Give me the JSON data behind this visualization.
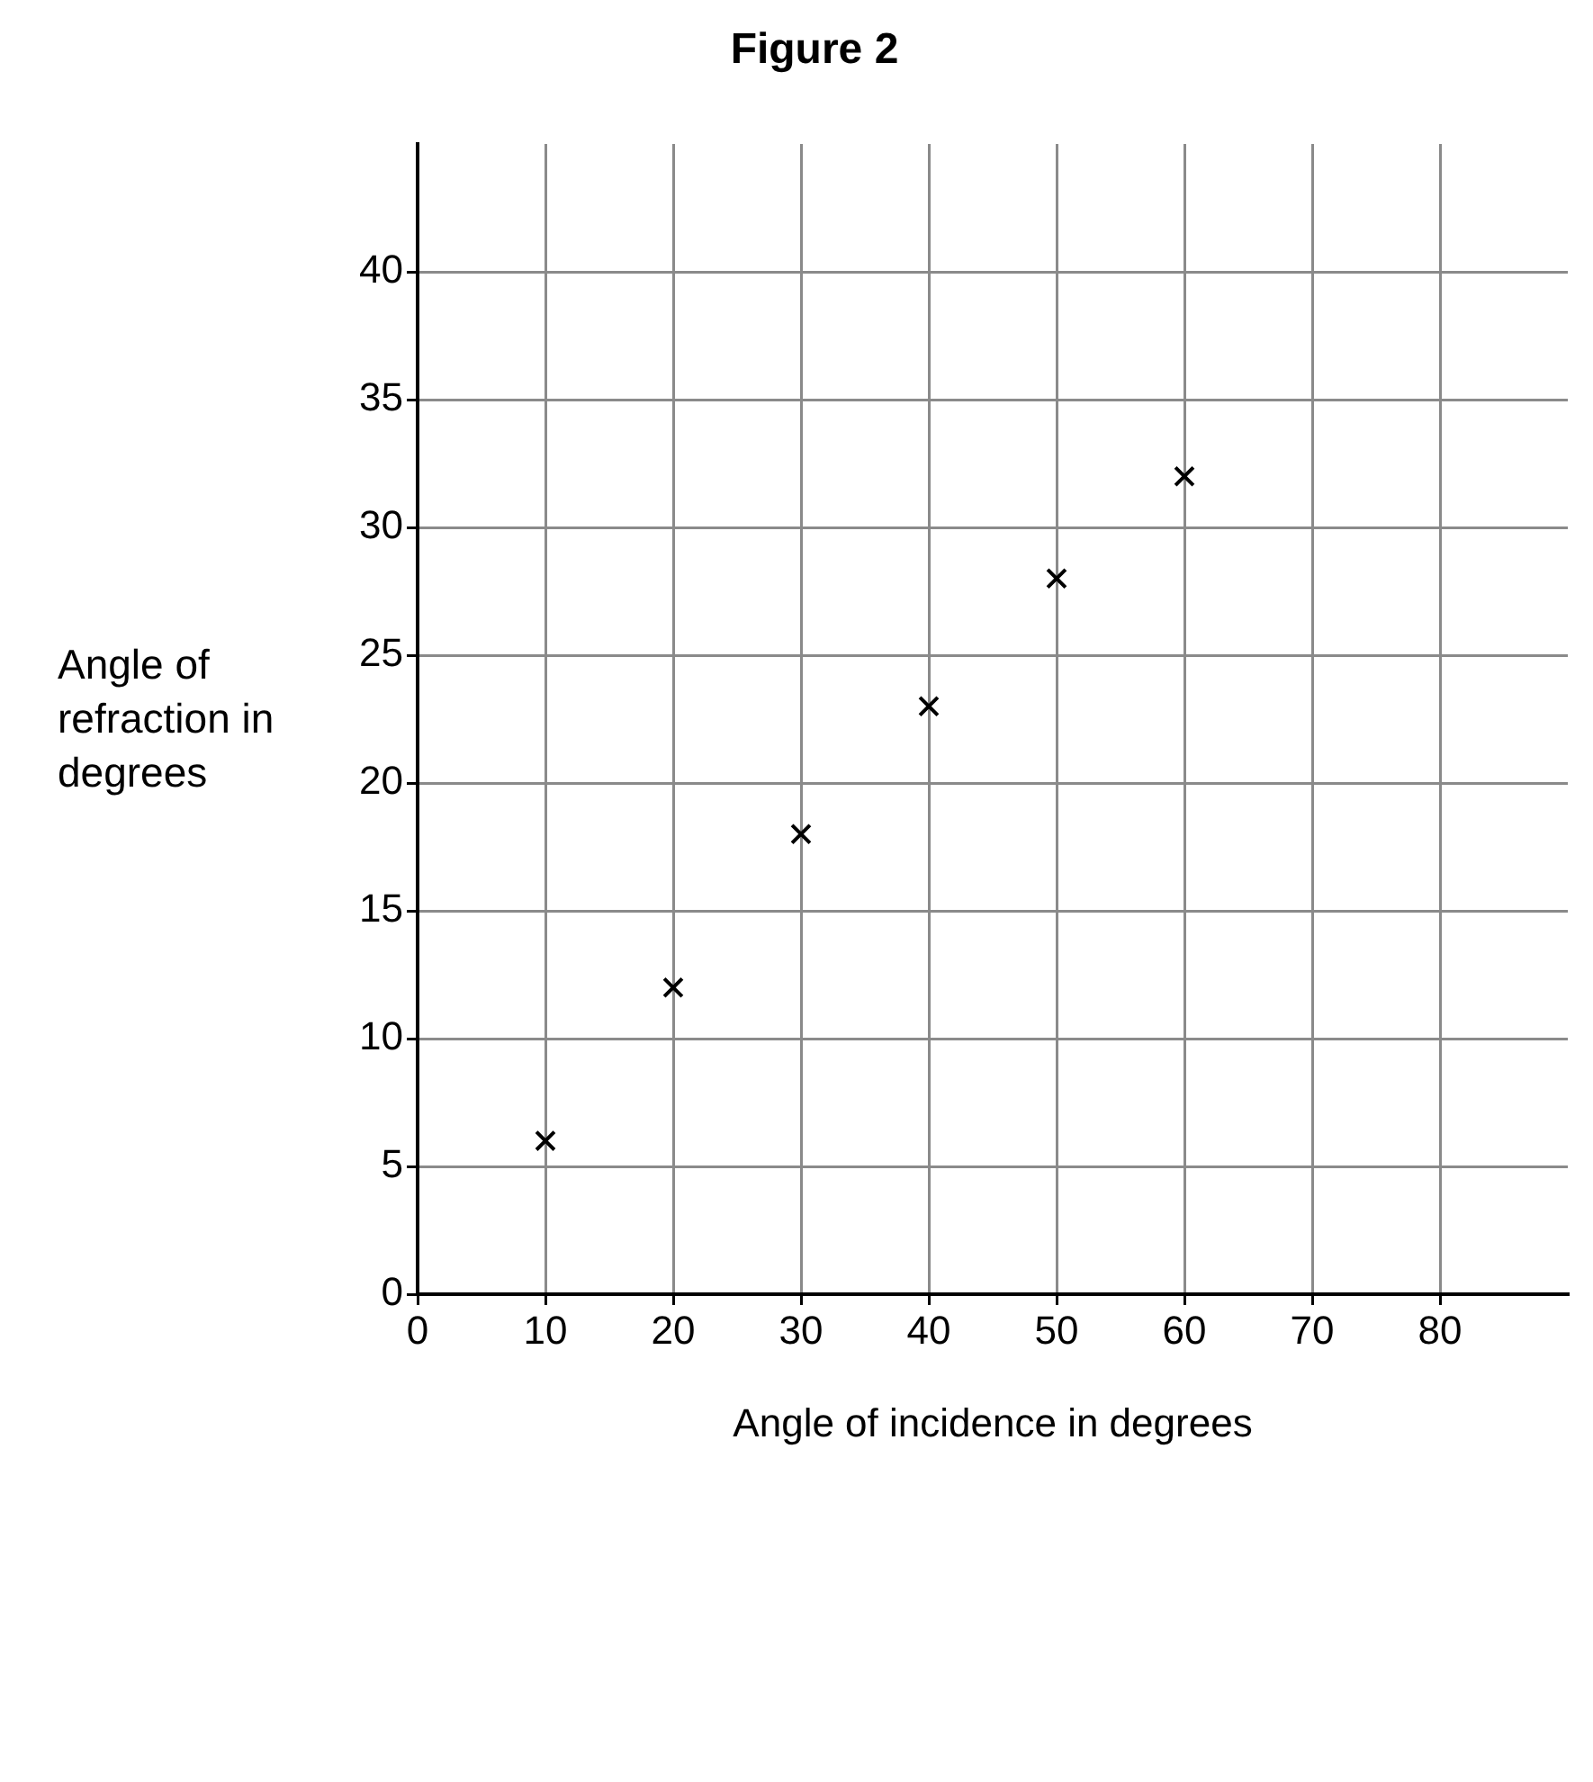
{
  "chart_data": {
    "type": "scatter",
    "title": "Figure 2",
    "xlabel": "Angle of incidence in degrees",
    "ylabel": "Angle of refraction in degrees",
    "x": [
      10,
      20,
      30,
      40,
      50,
      60
    ],
    "series": [
      {
        "color": "#000000",
        "values": [
          6,
          12,
          18,
          23,
          28,
          32
        ]
      }
    ],
    "xlim": [
      0,
      90
    ],
    "xticks": [
      0,
      10,
      20,
      30,
      40,
      50,
      60,
      70,
      80
    ],
    "ylim": [
      0,
      45
    ],
    "yticks": [
      0,
      5,
      10,
      15,
      20,
      25,
      30,
      35,
      40
    ],
    "grid": true,
    "marker": "cross",
    "legend": false
  }
}
